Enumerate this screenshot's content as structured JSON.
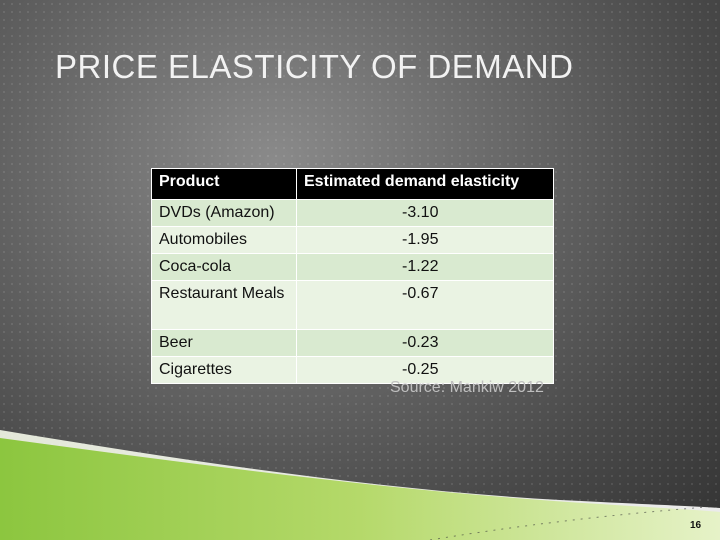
{
  "slide": {
    "title": "PRICE ELASTICITY OF DEMAND",
    "source": "Source: Mankiw 2012",
    "page_number": "16"
  },
  "table": {
    "headers": [
      "Product",
      "Estimated demand elasticity"
    ],
    "rows": [
      {
        "product": "DVDs (Amazon)",
        "elasticity": "-3.10"
      },
      {
        "product": "Automobiles",
        "elasticity": "-1.95"
      },
      {
        "product": "Coca-cola",
        "elasticity": "-1.22"
      },
      {
        "product": "Restaurant Meals",
        "elasticity": "-0.67"
      },
      {
        "product": "Beer",
        "elasticity": "-0.23"
      },
      {
        "product": "Cigarettes",
        "elasticity": "-0.25"
      }
    ]
  },
  "colors": {
    "header_bg": "#000000",
    "row_band": "#d9ead0",
    "row_plain": "#eaf3e3",
    "swoosh_green": "#8cc63f",
    "swoosh_light": "#e6f2c8"
  }
}
